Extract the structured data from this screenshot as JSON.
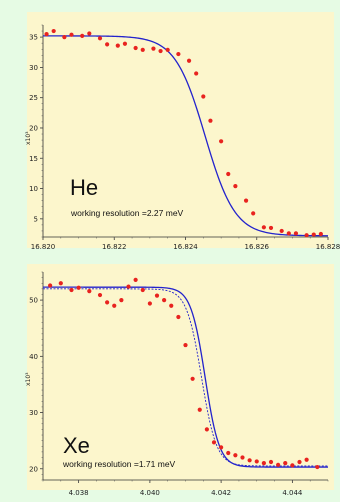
{
  "chart_data": [
    {
      "type": "scatter",
      "title": "",
      "xlabel": "",
      "ylabel": "",
      "y_multiplier_label": "x10³",
      "xlim": [
        16.82,
        16.828
      ],
      "ylim": [
        2,
        37
      ],
      "x_ticks": [
        "16.820",
        "16.822",
        "16.824",
        "16.826",
        "16.828"
      ],
      "y_ticks": [
        "5",
        "10",
        "15",
        "20",
        "25",
        "30",
        "35"
      ],
      "annotation_title": "He",
      "annotation_text": "working resolution =2.27 meV",
      "colors": {
        "plot_bg": "#fcf6cc",
        "points": "#e8231f",
        "fit": "#2323cc"
      },
      "grid": false,
      "series": [
        {
          "kind": "points",
          "x": [
            16.8201,
            16.8203,
            16.8206,
            16.8208,
            16.8211,
            16.8213,
            16.8216,
            16.8218,
            16.8221,
            16.8223,
            16.8226,
            16.8228,
            16.8231,
            16.8233,
            16.8235,
            16.8238,
            16.8241,
            16.8243,
            16.8245,
            16.8247,
            16.825,
            16.8252,
            16.8254,
            16.8257,
            16.8259,
            16.8262,
            16.8264,
            16.8267,
            16.8269,
            16.8271,
            16.8274,
            16.8276,
            16.8278
          ],
          "y": [
            35.5,
            36.0,
            35.0,
            35.4,
            35.2,
            35.6,
            34.8,
            33.8,
            33.6,
            33.9,
            33.2,
            32.9,
            33.1,
            32.7,
            32.9,
            32.2,
            31.1,
            29.0,
            25.2,
            21.2,
            17.8,
            12.4,
            10.4,
            8.0,
            5.9,
            3.6,
            3.5,
            3.0,
            2.6,
            2.6,
            2.3,
            2.4,
            2.5
          ]
        },
        {
          "kind": "fit",
          "params": {
            "y_high": 35.2,
            "y_low": 2.2,
            "x0": 16.82455,
            "width": 0.00042,
            "slope": -0.25
          }
        }
      ]
    },
    {
      "type": "scatter",
      "title": "",
      "xlabel": "",
      "ylabel": "",
      "y_multiplier_label": "x10³",
      "xlim": [
        4.037,
        4.045
      ],
      "ylim": [
        18,
        55
      ],
      "x_ticks": [
        "4.038",
        "4.040",
        "4.042",
        "4.044"
      ],
      "y_ticks": [
        "20",
        "30",
        "40",
        "50"
      ],
      "annotation_title": "Xe",
      "annotation_text": "working resolution =1.71 meV",
      "colors": {
        "plot_bg": "#fcf6cc",
        "points": "#e8231f",
        "fit": "#2323cc"
      },
      "grid": false,
      "series": [
        {
          "kind": "points",
          "x": [
            4.0372,
            4.0375,
            4.0378,
            4.038,
            4.0383,
            4.0386,
            4.0388,
            4.039,
            4.0392,
            4.0394,
            4.0396,
            4.0398,
            4.04,
            4.0402,
            4.0404,
            4.0406,
            4.0408,
            4.041,
            4.0412,
            4.0414,
            4.0416,
            4.0418,
            4.042,
            4.0422,
            4.0424,
            4.0426,
            4.0428,
            4.043,
            4.0432,
            4.0434,
            4.0436,
            4.0438,
            4.044,
            4.0442,
            4.0444,
            4.0447
          ],
          "y": [
            52.6,
            53.0,
            51.8,
            52.2,
            51.6,
            50.9,
            49.6,
            49.0,
            50.0,
            52.4,
            53.6,
            51.8,
            49.4,
            50.8,
            50.0,
            49.0,
            47.0,
            42.0,
            36.0,
            30.5,
            27.0,
            24.7,
            23.8,
            22.8,
            22.4,
            22.0,
            21.5,
            21.3,
            21.0,
            21.2,
            20.7,
            21.0,
            20.6,
            21.2,
            21.6,
            20.3
          ]
        },
        {
          "kind": "fit",
          "params": {
            "y_high": 52.3,
            "y_low": 20.3,
            "x0": 4.04155,
            "width": 0.0002,
            "slope": -0.7
          }
        },
        {
          "kind": "fit-dashed",
          "params": {
            "y_high": 52.0,
            "y_low": 20.5,
            "x0": 4.04145,
            "width": 0.00021,
            "slope": -0.5
          }
        }
      ]
    }
  ]
}
